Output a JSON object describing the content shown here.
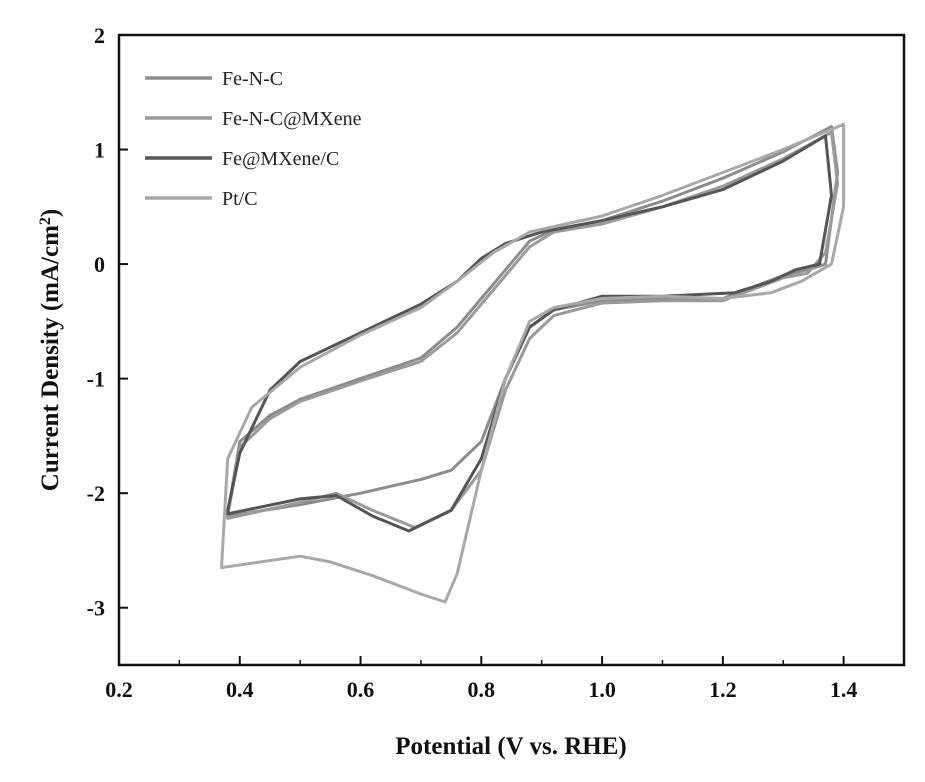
{
  "chart_data": {
    "type": "line",
    "title": "",
    "xlabel": "Potential (V vs. RHE)",
    "ylabel": "Current Density (mA/cm",
    "ylabel_sup": "2",
    "ylabel_close": ")",
    "xlim": [
      0.2,
      1.5
    ],
    "ylim": [
      -3.5,
      2
    ],
    "xticks": [
      0.2,
      0.4,
      0.6,
      0.8,
      1.0,
      1.2,
      1.4
    ],
    "xtick_labels": [
      "0.2",
      "0.4",
      "0.6",
      "0.8",
      "1.0",
      "1.2",
      "1.4"
    ],
    "yticks": [
      -3,
      -2,
      -1,
      0,
      1,
      2
    ],
    "ytick_labels": [
      "-3",
      "-2",
      "-1",
      "0",
      "1",
      "2"
    ],
    "grid": false,
    "legend_position": "top-left",
    "series": [
      {
        "name": "Fe-N-C",
        "color": "#8c8c8c",
        "points": [
          [
            0.38,
            -2.18
          ],
          [
            0.4,
            -1.55
          ],
          [
            0.45,
            -1.32
          ],
          [
            0.5,
            -1.18
          ],
          [
            0.6,
            -1.0
          ],
          [
            0.7,
            -0.82
          ],
          [
            0.76,
            -0.55
          ],
          [
            0.8,
            -0.3
          ],
          [
            0.84,
            -0.05
          ],
          [
            0.88,
            0.2
          ],
          [
            0.92,
            0.3
          ],
          [
            1.0,
            0.38
          ],
          [
            1.1,
            0.55
          ],
          [
            1.2,
            0.75
          ],
          [
            1.3,
            0.98
          ],
          [
            1.38,
            1.2
          ],
          [
            1.39,
            0.8
          ],
          [
            1.37,
            0.0
          ],
          [
            1.34,
            -0.05
          ],
          [
            1.3,
            -0.1
          ],
          [
            1.25,
            -0.2
          ],
          [
            1.2,
            -0.3
          ],
          [
            1.1,
            -0.3
          ],
          [
            1.0,
            -0.32
          ],
          [
            0.92,
            -0.4
          ],
          [
            0.88,
            -0.55
          ],
          [
            0.84,
            -1.0
          ],
          [
            0.8,
            -1.55
          ],
          [
            0.75,
            -1.8
          ],
          [
            0.7,
            -1.88
          ],
          [
            0.6,
            -2.0
          ],
          [
            0.5,
            -2.1
          ],
          [
            0.38,
            -2.2
          ]
        ]
      },
      {
        "name": "Fe-N-C@MXene",
        "color": "#9a9a9a",
        "points": [
          [
            0.38,
            -2.2
          ],
          [
            0.4,
            -1.6
          ],
          [
            0.45,
            -1.35
          ],
          [
            0.5,
            -1.2
          ],
          [
            0.6,
            -1.02
          ],
          [
            0.7,
            -0.85
          ],
          [
            0.76,
            -0.6
          ],
          [
            0.8,
            -0.35
          ],
          [
            0.84,
            -0.1
          ],
          [
            0.88,
            0.15
          ],
          [
            0.92,
            0.28
          ],
          [
            1.0,
            0.35
          ],
          [
            1.1,
            0.5
          ],
          [
            1.2,
            0.68
          ],
          [
            1.3,
            0.92
          ],
          [
            1.38,
            1.15
          ],
          [
            1.39,
            0.7
          ],
          [
            1.37,
            0.1
          ],
          [
            1.34,
            -0.08
          ],
          [
            1.3,
            -0.12
          ],
          [
            1.25,
            -0.22
          ],
          [
            1.2,
            -0.32
          ],
          [
            1.1,
            -0.32
          ],
          [
            1.0,
            -0.34
          ],
          [
            0.92,
            -0.45
          ],
          [
            0.88,
            -0.65
          ],
          [
            0.84,
            -1.1
          ],
          [
            0.8,
            -1.8
          ],
          [
            0.75,
            -2.15
          ],
          [
            0.69,
            -2.3
          ],
          [
            0.62,
            -2.15
          ],
          [
            0.56,
            -2.0
          ],
          [
            0.5,
            -2.08
          ],
          [
            0.38,
            -2.22
          ]
        ]
      },
      {
        "name": "Fe@MXene/C",
        "color": "#555555",
        "points": [
          [
            0.38,
            -2.15
          ],
          [
            0.4,
            -1.65
          ],
          [
            0.45,
            -1.1
          ],
          [
            0.5,
            -0.85
          ],
          [
            0.6,
            -0.6
          ],
          [
            0.7,
            -0.35
          ],
          [
            0.76,
            -0.15
          ],
          [
            0.8,
            0.05
          ],
          [
            0.84,
            0.18
          ],
          [
            0.9,
            0.28
          ],
          [
            1.0,
            0.38
          ],
          [
            1.1,
            0.5
          ],
          [
            1.2,
            0.65
          ],
          [
            1.3,
            0.9
          ],
          [
            1.37,
            1.12
          ],
          [
            1.38,
            0.6
          ],
          [
            1.36,
            0.0
          ],
          [
            1.32,
            -0.05
          ],
          [
            1.28,
            -0.15
          ],
          [
            1.22,
            -0.25
          ],
          [
            1.1,
            -0.28
          ],
          [
            1.0,
            -0.28
          ],
          [
            0.92,
            -0.4
          ],
          [
            0.88,
            -0.55
          ],
          [
            0.84,
            -1.0
          ],
          [
            0.8,
            -1.7
          ],
          [
            0.75,
            -2.15
          ],
          [
            0.68,
            -2.33
          ],
          [
            0.62,
            -2.2
          ],
          [
            0.56,
            -2.02
          ],
          [
            0.5,
            -2.05
          ],
          [
            0.38,
            -2.18
          ]
        ]
      },
      {
        "name": "Pt/C",
        "color": "#a8a8a8",
        "points": [
          [
            0.37,
            -2.62
          ],
          [
            0.38,
            -1.7
          ],
          [
            0.42,
            -1.25
          ],
          [
            0.5,
            -0.9
          ],
          [
            0.6,
            -0.62
          ],
          [
            0.7,
            -0.38
          ],
          [
            0.76,
            -0.15
          ],
          [
            0.82,
            0.1
          ],
          [
            0.88,
            0.28
          ],
          [
            1.0,
            0.42
          ],
          [
            1.1,
            0.6
          ],
          [
            1.2,
            0.8
          ],
          [
            1.3,
            1.0
          ],
          [
            1.4,
            1.22
          ],
          [
            1.4,
            0.5
          ],
          [
            1.38,
            0.0
          ],
          [
            1.33,
            -0.15
          ],
          [
            1.28,
            -0.25
          ],
          [
            1.2,
            -0.3
          ],
          [
            1.1,
            -0.28
          ],
          [
            1.0,
            -0.3
          ],
          [
            0.92,
            -0.38
          ],
          [
            0.88,
            -0.5
          ],
          [
            0.84,
            -1.0
          ],
          [
            0.8,
            -1.8
          ],
          [
            0.76,
            -2.7
          ],
          [
            0.74,
            -2.95
          ],
          [
            0.7,
            -2.88
          ],
          [
            0.62,
            -2.72
          ],
          [
            0.55,
            -2.6
          ],
          [
            0.5,
            -2.55
          ],
          [
            0.37,
            -2.65
          ]
        ]
      }
    ]
  }
}
